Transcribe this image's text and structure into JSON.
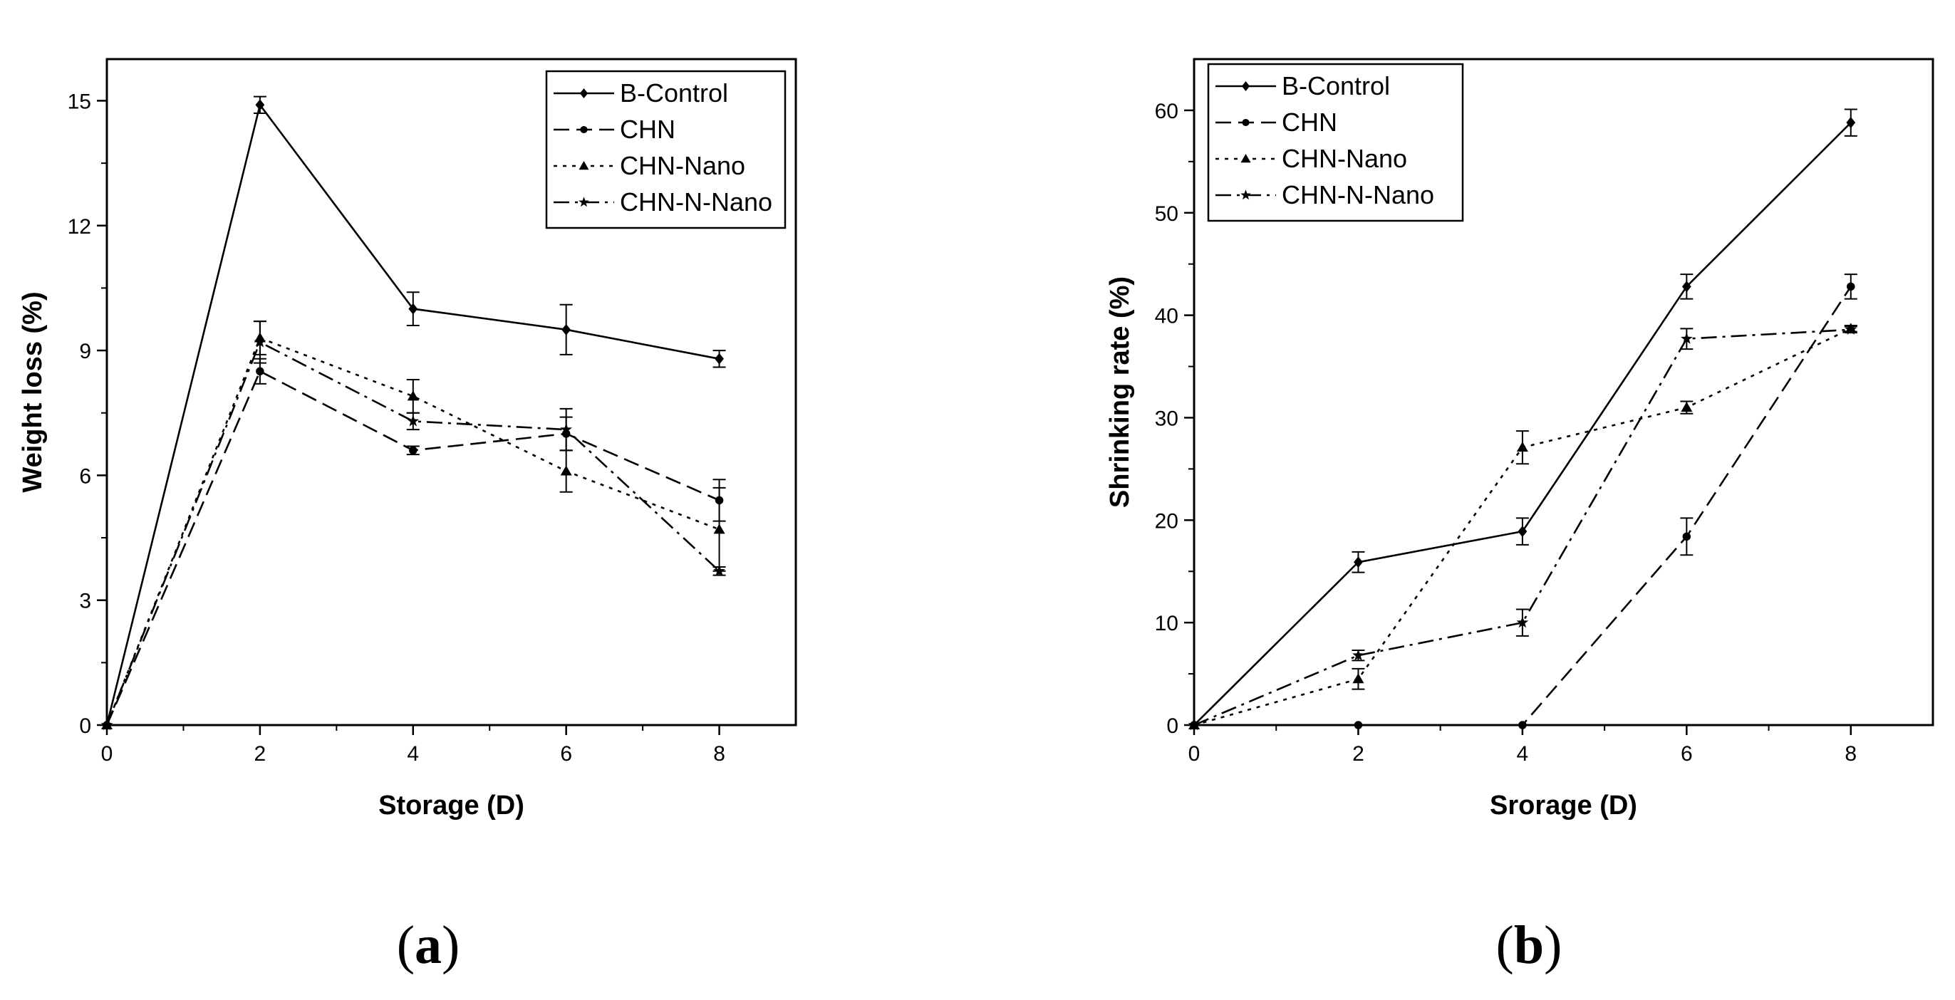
{
  "chart_data": [
    {
      "type": "line",
      "panel_label": {
        "open": "(",
        "letter": "a",
        "close": ")"
      },
      "xlabel": "Storage (D)",
      "ylabel": "Weight loss (%)",
      "xlim": [
        0,
        9
      ],
      "ylim": [
        0,
        16
      ],
      "xticks": [
        0,
        2,
        4,
        6,
        8
      ],
      "xticklabels": [
        "0",
        "2",
        "4",
        "6",
        "8"
      ],
      "yticks": [
        0,
        3,
        6,
        9,
        12,
        15
      ],
      "yticklabels": [
        "0",
        "3",
        "6",
        "9",
        "12",
        "15"
      ],
      "legend_position": "top-right",
      "series": [
        {
          "name": "B-Control",
          "marker": "diamond",
          "dash": "solid",
          "x": [
            0,
            2,
            4,
            6,
            8
          ],
          "y": [
            0,
            14.9,
            10.0,
            9.5,
            8.8
          ],
          "err": [
            0,
            0.2,
            0.4,
            0.6,
            0.2
          ]
        },
        {
          "name": "CHN",
          "marker": "circle",
          "dash": "dash",
          "x": [
            0,
            2,
            4,
            6,
            8
          ],
          "y": [
            0,
            8.5,
            6.6,
            7.0,
            5.4
          ],
          "err": [
            0,
            0.3,
            0.1,
            0.4,
            0.5
          ]
        },
        {
          "name": "CHN-Nano",
          "marker": "triangle",
          "dash": "dot",
          "x": [
            0,
            2,
            4,
            6,
            8
          ],
          "y": [
            0,
            9.3,
            7.9,
            6.1,
            4.7
          ],
          "err": [
            0,
            0.4,
            0.4,
            0.5,
            1.0
          ]
        },
        {
          "name": "CHN-N-Nano",
          "marker": "star",
          "dash": "dashdot",
          "x": [
            0,
            2,
            4,
            6,
            8
          ],
          "y": [
            0,
            9.2,
            7.3,
            7.1,
            3.7
          ],
          "err": [
            0,
            0.5,
            0.2,
            0.5,
            0.1
          ]
        }
      ]
    },
    {
      "type": "line",
      "panel_label": {
        "open": "(",
        "letter": "b",
        "close": ")"
      },
      "xlabel": "Srorage (D)",
      "ylabel": "Shrinking rate (%)",
      "xlim": [
        0,
        9
      ],
      "ylim": [
        0,
        65
      ],
      "xticks": [
        0,
        2,
        4,
        6,
        8
      ],
      "xticklabels": [
        "0",
        "2",
        "4",
        "6",
        "8"
      ],
      "yticks": [
        0,
        10,
        20,
        30,
        40,
        50,
        60
      ],
      "yticklabels": [
        "0",
        "10",
        "20",
        "30",
        "40",
        "50",
        "60"
      ],
      "legend_position": "top-left",
      "series": [
        {
          "name": "B-Control",
          "marker": "diamond",
          "dash": "solid",
          "x": [
            0,
            2,
            4,
            6,
            8
          ],
          "y": [
            0,
            15.9,
            18.9,
            42.8,
            58.8
          ],
          "err": [
            0,
            1.0,
            1.3,
            1.2,
            1.3
          ]
        },
        {
          "name": "CHN",
          "marker": "circle",
          "dash": "dash",
          "x": [
            0,
            2,
            4,
            6,
            8
          ],
          "y": [
            0,
            0,
            0,
            18.4,
            42.8
          ],
          "err": [
            0,
            0,
            0,
            1.8,
            1.2
          ]
        },
        {
          "name": "CHN-Nano",
          "marker": "triangle",
          "dash": "dot",
          "x": [
            0,
            2,
            4,
            6,
            8
          ],
          "y": [
            0,
            4.5,
            27.1,
            31.0,
            38.7
          ],
          "err": [
            0,
            1.0,
            1.6,
            0.6,
            0.3
          ]
        },
        {
          "name": "CHN-N-Nano",
          "marker": "star",
          "dash": "dashdot",
          "x": [
            0,
            2,
            4,
            6,
            8
          ],
          "y": [
            0,
            6.8,
            10.0,
            37.7,
            38.6
          ],
          "err": [
            0,
            0.5,
            1.3,
            1.0,
            0.3
          ]
        }
      ]
    }
  ]
}
